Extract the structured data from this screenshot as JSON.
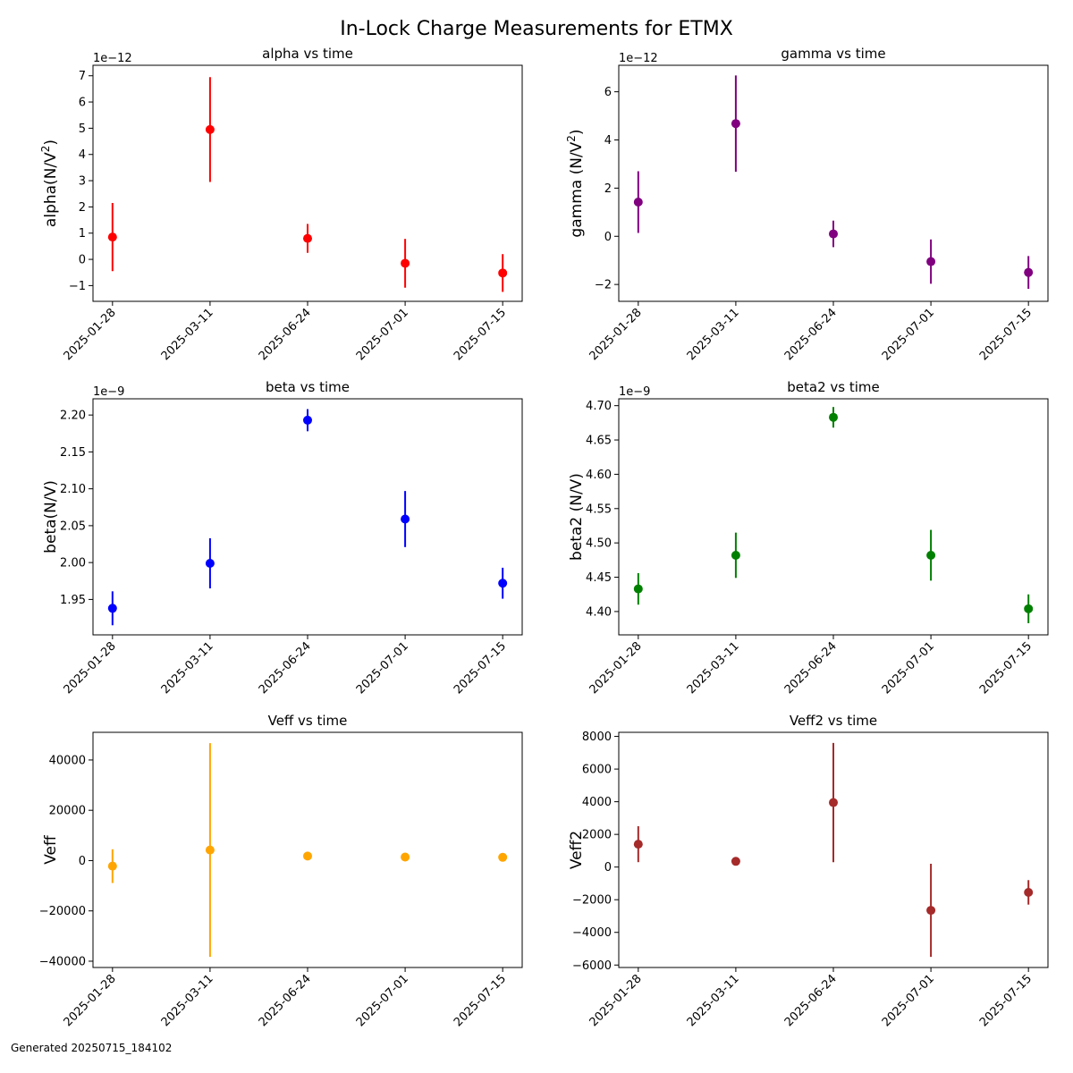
{
  "figure": {
    "title": "In-Lock Charge Measurements for ETMX",
    "footer": "Generated 20250715_184102"
  },
  "chart_data": [
    {
      "type": "scatter",
      "title": "alpha vs time",
      "ylabel_main": "alpha(N/V",
      "ylabel_sup": "2",
      "ylabel_tail": ")",
      "color": "#ff0000",
      "offset_text": "1e−12",
      "categories": [
        "2025-01-28",
        "2025-03-11",
        "2025-06-24",
        "2025-07-01",
        "2025-07-15"
      ],
      "values": [
        0.85,
        4.95,
        0.8,
        -0.15,
        -0.52
      ],
      "errors": [
        1.3,
        2.0,
        0.55,
        0.93,
        0.72
      ],
      "ylim": [
        -1.6,
        7.4
      ],
      "yticks": [
        -1,
        0,
        1,
        2,
        3,
        4,
        5,
        6,
        7
      ],
      "ytick_labels": [
        "−1",
        "0",
        "1",
        "2",
        "3",
        "4",
        "5",
        "6",
        "7"
      ]
    },
    {
      "type": "scatter",
      "title": "gamma vs time",
      "ylabel_main": "gamma (N/V",
      "ylabel_sup": "2",
      "ylabel_tail": ")",
      "color": "#800080",
      "offset_text": "1e−12",
      "categories": [
        "2025-01-28",
        "2025-03-11",
        "2025-06-24",
        "2025-07-01",
        "2025-07-15"
      ],
      "values": [
        1.42,
        4.68,
        0.1,
        -1.05,
        -1.5
      ],
      "errors": [
        1.28,
        2.0,
        0.55,
        0.92,
        0.68
      ],
      "ylim": [
        -2.7,
        7.1
      ],
      "yticks": [
        -2,
        0,
        2,
        4,
        6
      ],
      "ytick_labels": [
        "−2",
        "0",
        "2",
        "4",
        "6"
      ]
    },
    {
      "type": "scatter",
      "title": "beta vs time",
      "ylabel_main": "beta(N/V)",
      "ylabel_sup": "",
      "ylabel_tail": "",
      "color": "#0000ff",
      "offset_text": "1e−9",
      "categories": [
        "2025-01-28",
        "2025-03-11",
        "2025-06-24",
        "2025-07-01",
        "2025-07-15"
      ],
      "values": [
        1.938,
        1.999,
        2.193,
        2.059,
        1.972
      ],
      "errors": [
        0.023,
        0.034,
        0.015,
        0.038,
        0.021
      ],
      "ylim": [
        1.902,
        2.222
      ],
      "yticks": [
        1.95,
        2.0,
        2.05,
        2.1,
        2.15,
        2.2
      ],
      "ytick_labels": [
        "1.95",
        "2.00",
        "2.05",
        "2.10",
        "2.15",
        "2.20"
      ]
    },
    {
      "type": "scatter",
      "title": "beta2 vs time",
      "ylabel_main": "beta2 (N/V)",
      "ylabel_sup": "",
      "ylabel_tail": "",
      "color": "#008000",
      "offset_text": "1e−9",
      "categories": [
        "2025-01-28",
        "2025-03-11",
        "2025-06-24",
        "2025-07-01",
        "2025-07-15"
      ],
      "values": [
        4.433,
        4.482,
        4.683,
        4.482,
        4.404
      ],
      "errors": [
        0.023,
        0.033,
        0.015,
        0.037,
        0.021
      ],
      "ylim": [
        4.366,
        4.71
      ],
      "yticks": [
        4.4,
        4.45,
        4.5,
        4.55,
        4.6,
        4.65,
        4.7
      ],
      "ytick_labels": [
        "4.40",
        "4.45",
        "4.50",
        "4.55",
        "4.60",
        "4.65",
        "4.70"
      ]
    },
    {
      "type": "scatter",
      "title": "Veff vs time",
      "ylabel_main": "Veff",
      "ylabel_sup": "",
      "ylabel_tail": "",
      "color": "#ffa500",
      "offset_text": "",
      "categories": [
        "2025-01-28",
        "2025-03-11",
        "2025-06-24",
        "2025-07-01",
        "2025-07-15"
      ],
      "values": [
        -2200,
        4200,
        1800,
        1400,
        1300
      ],
      "errors": [
        6700,
        42500,
        1500,
        700,
        600
      ],
      "ylim": [
        -42500,
        51000
      ],
      "yticks": [
        -40000,
        -20000,
        0,
        20000,
        40000
      ],
      "ytick_labels": [
        "−40000",
        "−20000",
        "0",
        "20000",
        "40000"
      ]
    },
    {
      "type": "scatter",
      "title": "Veff2 vs time",
      "ylabel_main": "Veff2",
      "ylabel_sup": "",
      "ylabel_tail": "",
      "color": "#a52a2a",
      "offset_text": "",
      "categories": [
        "2025-01-28",
        "2025-03-11",
        "2025-06-24",
        "2025-07-01",
        "2025-07-15"
      ],
      "values": [
        1400,
        350,
        3950,
        -2650,
        -1550
      ],
      "errors": [
        1100,
        150,
        3650,
        2850,
        750
      ],
      "ylim": [
        -6150,
        8250
      ],
      "yticks": [
        -6000,
        -4000,
        -2000,
        0,
        2000,
        4000,
        6000,
        8000
      ],
      "ytick_labels": [
        "−6000",
        "−4000",
        "−2000",
        "0",
        "2000",
        "4000",
        "6000",
        "8000"
      ]
    }
  ]
}
